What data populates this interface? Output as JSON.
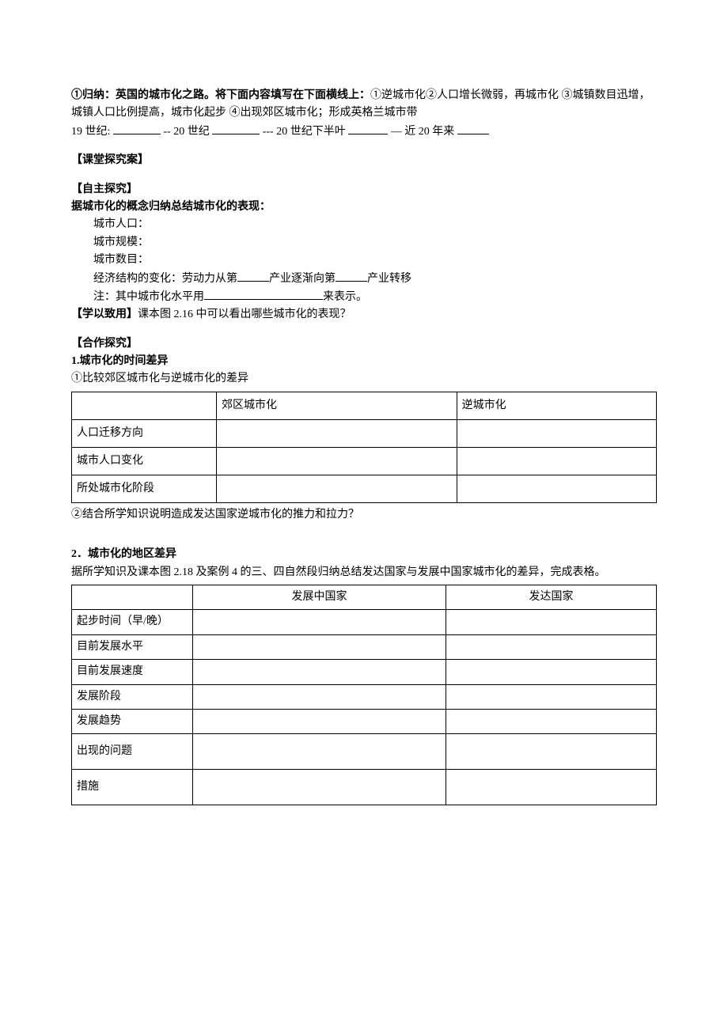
{
  "p1": {
    "lead_label": "①归纳：英国的城市化之路。将下面内容填写在下面横线上：",
    "items": "①逆城市化②人口增长微弱，再城市化 ③城镇数目迅增，城镇人口比例提高，城市化起步 ④出现郊区城市化；形成英格兰城市带",
    "timeline_a": "19 世纪:",
    "dash1": "--",
    "timeline_b": "20 世纪",
    "dash2": "---",
    "timeline_c": "20 世纪下半叶",
    "dash3": "—",
    "timeline_d": "近 20 年来"
  },
  "sec_class": "【课堂探究案】",
  "sec_self": "【自主探究】",
  "self_title": "据城市化的概念归纳总结城市化的表现：",
  "s1": "城市人口：",
  "s2": "城市规模：",
  "s3": "城市数目：",
  "s4a": "经济结构的变化：劳动力从第",
  "s4b": "产业逐渐向第",
  "s4c": "产业转移",
  "s5a": "注：其中城市化水平用",
  "s5b": "来表示。",
  "apply_label": "【学以致用】",
  "apply_text": "课本图 2.16 中可以看出哪些城市化的表现？",
  "sec_coop": "【合作探究】",
  "q1_title": "1.城市化的时间差异",
  "q1_sub1": "①比较郊区城市化与逆城市化的差异",
  "table1": {
    "col1": "郊区城市化",
    "col2": "逆城市化",
    "r1": "人口迁移方向",
    "r2": "城市人口变化",
    "r3": "所处城市化阶段"
  },
  "q1_sub2": "②结合所学知识说明造成发达国家逆城市化的推力和拉力？",
  "q2_title": "2．城市化的地区差异",
  "q2_desc": "据所学知识及课本图 2.18 及案例 4 的三、四自然段归纳总结发达国家与发展中国家城市化的差异，完成表格。",
  "table2": {
    "col1": "发展中国家",
    "col2": "发达国家",
    "r1": "起步时间（早/晚）",
    "r2": "目前发展水平",
    "r3": "目前发展速度",
    "r4": "发展阶段",
    "r5": "发展趋势",
    "r6": "出现的问题",
    "r7": "措施"
  }
}
